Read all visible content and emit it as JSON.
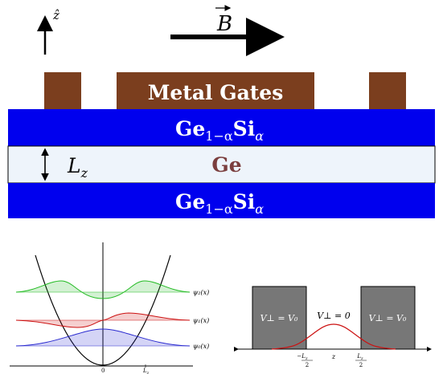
{
  "top": {
    "axis_label": "ẑ",
    "field_label": "B",
    "gates_label": "Metal Gates",
    "barrier_top": {
      "base": "Ge",
      "sub": "1−α",
      "si": "Si",
      "si_sub": "α"
    },
    "well_label": "Ge",
    "barrier_bottom": {
      "base": "Ge",
      "sub": "1−α",
      "si": "Si",
      "si_sub": "α"
    },
    "thickness_label": {
      "base": "L",
      "sub": "z"
    }
  },
  "harmonic": {
    "labels": {
      "psi2": "ψ₂(x)",
      "psi1": "ψ₁(x)",
      "psi0": "ψ₀(x)"
    },
    "ticks": {
      "zero": "0",
      "lz": "L",
      "lz_sub": "z"
    }
  },
  "square_well": {
    "left_region": "V⊥ = V₀",
    "middle_region": "V⊥ = 0",
    "right_region": "V⊥ = V₀",
    "tick_left": {
      "sign": "−",
      "num": "L",
      "num_sub": "z",
      "den": "2"
    },
    "tick_mid": "z",
    "tick_right": {
      "num": "L",
      "num_sub": "z",
      "den": "2"
    }
  },
  "colors": {
    "barrier": "#0000ee",
    "well": "#eef4fb",
    "gate": "#7b3e1e",
    "psi0": "#2a2ad0",
    "psi1": "#cc1111",
    "psi2": "#22bb22",
    "block": "#777777"
  }
}
